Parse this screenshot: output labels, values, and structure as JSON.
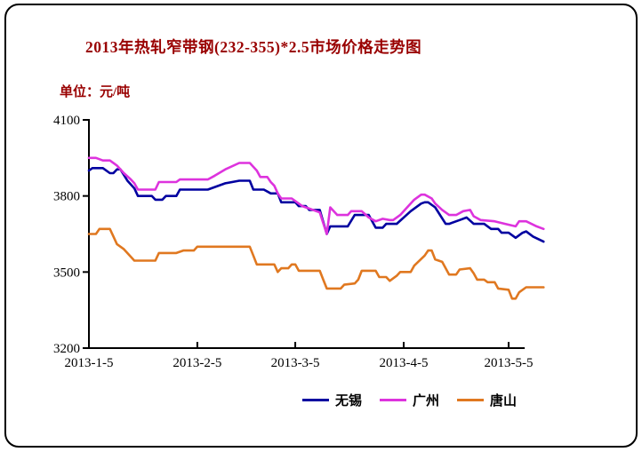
{
  "title": "2013年热轧窄带钢(232-355)*2.5市场价格走势图",
  "unit_label": "单位：元/吨",
  "colors": {
    "title_text": "#990000",
    "axis": "#000000",
    "background": "#ffffff",
    "series_wuxi": "#0000a0",
    "series_guangzhou": "#dd33dd",
    "series_tangshan": "#e07820"
  },
  "chart_data": {
    "type": "line",
    "title": "2013年热轧窄带钢(232-355)*2.5市场价格走势图",
    "ylabel": "元/吨",
    "ylim": [
      3200,
      4100
    ],
    "y_ticks": [
      4100,
      3800,
      3500,
      3200
    ],
    "x_ticks": [
      {
        "day": 0,
        "label": "2013-1-5"
      },
      {
        "day": 31,
        "label": "2013-2-5"
      },
      {
        "day": 59,
        "label": "2013-3-5"
      },
      {
        "day": 90,
        "label": "2013-4-5"
      },
      {
        "day": 120,
        "label": "2013-5-5"
      }
    ],
    "x_axis_end_day": 124.6,
    "grid": false,
    "legend_position": "bottom",
    "series": [
      {
        "id": "wuxi",
        "name": "无锡",
        "color": "#0000a0",
        "points": [
          [
            0,
            3900
          ],
          [
            1,
            3910
          ],
          [
            4,
            3910
          ],
          [
            6,
            3890
          ],
          [
            7,
            3890
          ],
          [
            8,
            3905
          ],
          [
            9,
            3905
          ],
          [
            11,
            3860
          ],
          [
            13,
            3830
          ],
          [
            14,
            3800
          ],
          [
            18,
            3800
          ],
          [
            19,
            3785
          ],
          [
            21,
            3785
          ],
          [
            22,
            3800
          ],
          [
            25,
            3800
          ],
          [
            26,
            3825
          ],
          [
            34,
            3825
          ],
          [
            39,
            3850
          ],
          [
            43,
            3860
          ],
          [
            46,
            3860
          ],
          [
            47,
            3825
          ],
          [
            50,
            3825
          ],
          [
            52,
            3810
          ],
          [
            54,
            3810
          ],
          [
            55,
            3775
          ],
          [
            59,
            3775
          ],
          [
            60,
            3760
          ],
          [
            62,
            3760
          ],
          [
            63,
            3745
          ],
          [
            66,
            3745
          ],
          [
            68,
            3650
          ],
          [
            69,
            3680
          ],
          [
            74,
            3680
          ],
          [
            76,
            3725
          ],
          [
            80,
            3725
          ],
          [
            82,
            3675
          ],
          [
            84,
            3675
          ],
          [
            85,
            3690
          ],
          [
            88,
            3690
          ],
          [
            92,
            3740
          ],
          [
            95,
            3770
          ],
          [
            96,
            3775
          ],
          [
            97,
            3775
          ],
          [
            99,
            3755
          ],
          [
            102,
            3690
          ],
          [
            103,
            3690
          ],
          [
            106,
            3705
          ],
          [
            108,
            3715
          ],
          [
            110,
            3690
          ],
          [
            113,
            3690
          ],
          [
            115,
            3670
          ],
          [
            117,
            3670
          ],
          [
            118,
            3655
          ],
          [
            120,
            3655
          ],
          [
            122,
            3635
          ],
          [
            124,
            3655
          ],
          [
            125,
            3660
          ],
          [
            127,
            3640
          ],
          [
            130,
            3620
          ]
        ]
      },
      {
        "id": "guangzhou",
        "name": "广州",
        "color": "#dd33dd",
        "points": [
          [
            0,
            3950
          ],
          [
            2,
            3950
          ],
          [
            4,
            3940
          ],
          [
            6,
            3940
          ],
          [
            8,
            3920
          ],
          [
            10,
            3890
          ],
          [
            12,
            3865
          ],
          [
            13,
            3850
          ],
          [
            14,
            3825
          ],
          [
            19,
            3825
          ],
          [
            20,
            3855
          ],
          [
            25,
            3855
          ],
          [
            26,
            3865
          ],
          [
            34,
            3865
          ],
          [
            36,
            3880
          ],
          [
            39,
            3905
          ],
          [
            43,
            3930
          ],
          [
            46,
            3930
          ],
          [
            48,
            3900
          ],
          [
            49,
            3875
          ],
          [
            51,
            3875
          ],
          [
            52,
            3855
          ],
          [
            53,
            3840
          ],
          [
            54,
            3810
          ],
          [
            55,
            3790
          ],
          [
            58,
            3790
          ],
          [
            61,
            3760
          ],
          [
            63,
            3750
          ],
          [
            66,
            3735
          ],
          [
            68,
            3650
          ],
          [
            69,
            3755
          ],
          [
            71,
            3725
          ],
          [
            74,
            3725
          ],
          [
            75,
            3740
          ],
          [
            78,
            3740
          ],
          [
            80,
            3715
          ],
          [
            82,
            3700
          ],
          [
            84,
            3710
          ],
          [
            86,
            3705
          ],
          [
            87,
            3705
          ],
          [
            89,
            3725
          ],
          [
            91,
            3755
          ],
          [
            93,
            3785
          ],
          [
            95,
            3805
          ],
          [
            96,
            3805
          ],
          [
            98,
            3790
          ],
          [
            99,
            3770
          ],
          [
            101,
            3745
          ],
          [
            103,
            3725
          ],
          [
            105,
            3725
          ],
          [
            107,
            3740
          ],
          [
            109,
            3745
          ],
          [
            110,
            3720
          ],
          [
            112,
            3705
          ],
          [
            116,
            3700
          ],
          [
            119,
            3690
          ],
          [
            122,
            3680
          ],
          [
            123,
            3700
          ],
          [
            125,
            3700
          ],
          [
            128,
            3680
          ],
          [
            130,
            3670
          ]
        ]
      },
      {
        "id": "tangshan",
        "name": "唐山",
        "color": "#e07820",
        "points": [
          [
            0,
            3650
          ],
          [
            2,
            3650
          ],
          [
            3,
            3670
          ],
          [
            6,
            3670
          ],
          [
            8,
            3610
          ],
          [
            10,
            3590
          ],
          [
            13,
            3545
          ],
          [
            19,
            3545
          ],
          [
            20,
            3575
          ],
          [
            25,
            3575
          ],
          [
            27,
            3585
          ],
          [
            30,
            3585
          ],
          [
            31,
            3600
          ],
          [
            46,
            3600
          ],
          [
            47,
            3565
          ],
          [
            48,
            3530
          ],
          [
            53,
            3530
          ],
          [
            54,
            3500
          ],
          [
            55,
            3515
          ],
          [
            57,
            3515
          ],
          [
            58,
            3530
          ],
          [
            59,
            3530
          ],
          [
            60,
            3505
          ],
          [
            66,
            3505
          ],
          [
            67,
            3470
          ],
          [
            68,
            3435
          ],
          [
            72,
            3435
          ],
          [
            73,
            3450
          ],
          [
            76,
            3455
          ],
          [
            77,
            3470
          ],
          [
            78,
            3505
          ],
          [
            82,
            3505
          ],
          [
            83,
            3480
          ],
          [
            85,
            3480
          ],
          [
            86,
            3465
          ],
          [
            88,
            3485
          ],
          [
            89,
            3500
          ],
          [
            92,
            3500
          ],
          [
            93,
            3525
          ],
          [
            96,
            3565
          ],
          [
            97,
            3585
          ],
          [
            98,
            3585
          ],
          [
            99,
            3550
          ],
          [
            101,
            3540
          ],
          [
            103,
            3490
          ],
          [
            105,
            3490
          ],
          [
            106,
            3510
          ],
          [
            109,
            3515
          ],
          [
            110,
            3495
          ],
          [
            111,
            3470
          ],
          [
            113,
            3470
          ],
          [
            114,
            3460
          ],
          [
            116,
            3460
          ],
          [
            117,
            3435
          ],
          [
            120,
            3430
          ],
          [
            121,
            3395
          ],
          [
            122,
            3395
          ],
          [
            123,
            3420
          ],
          [
            125,
            3440
          ],
          [
            130,
            3440
          ]
        ]
      }
    ]
  }
}
